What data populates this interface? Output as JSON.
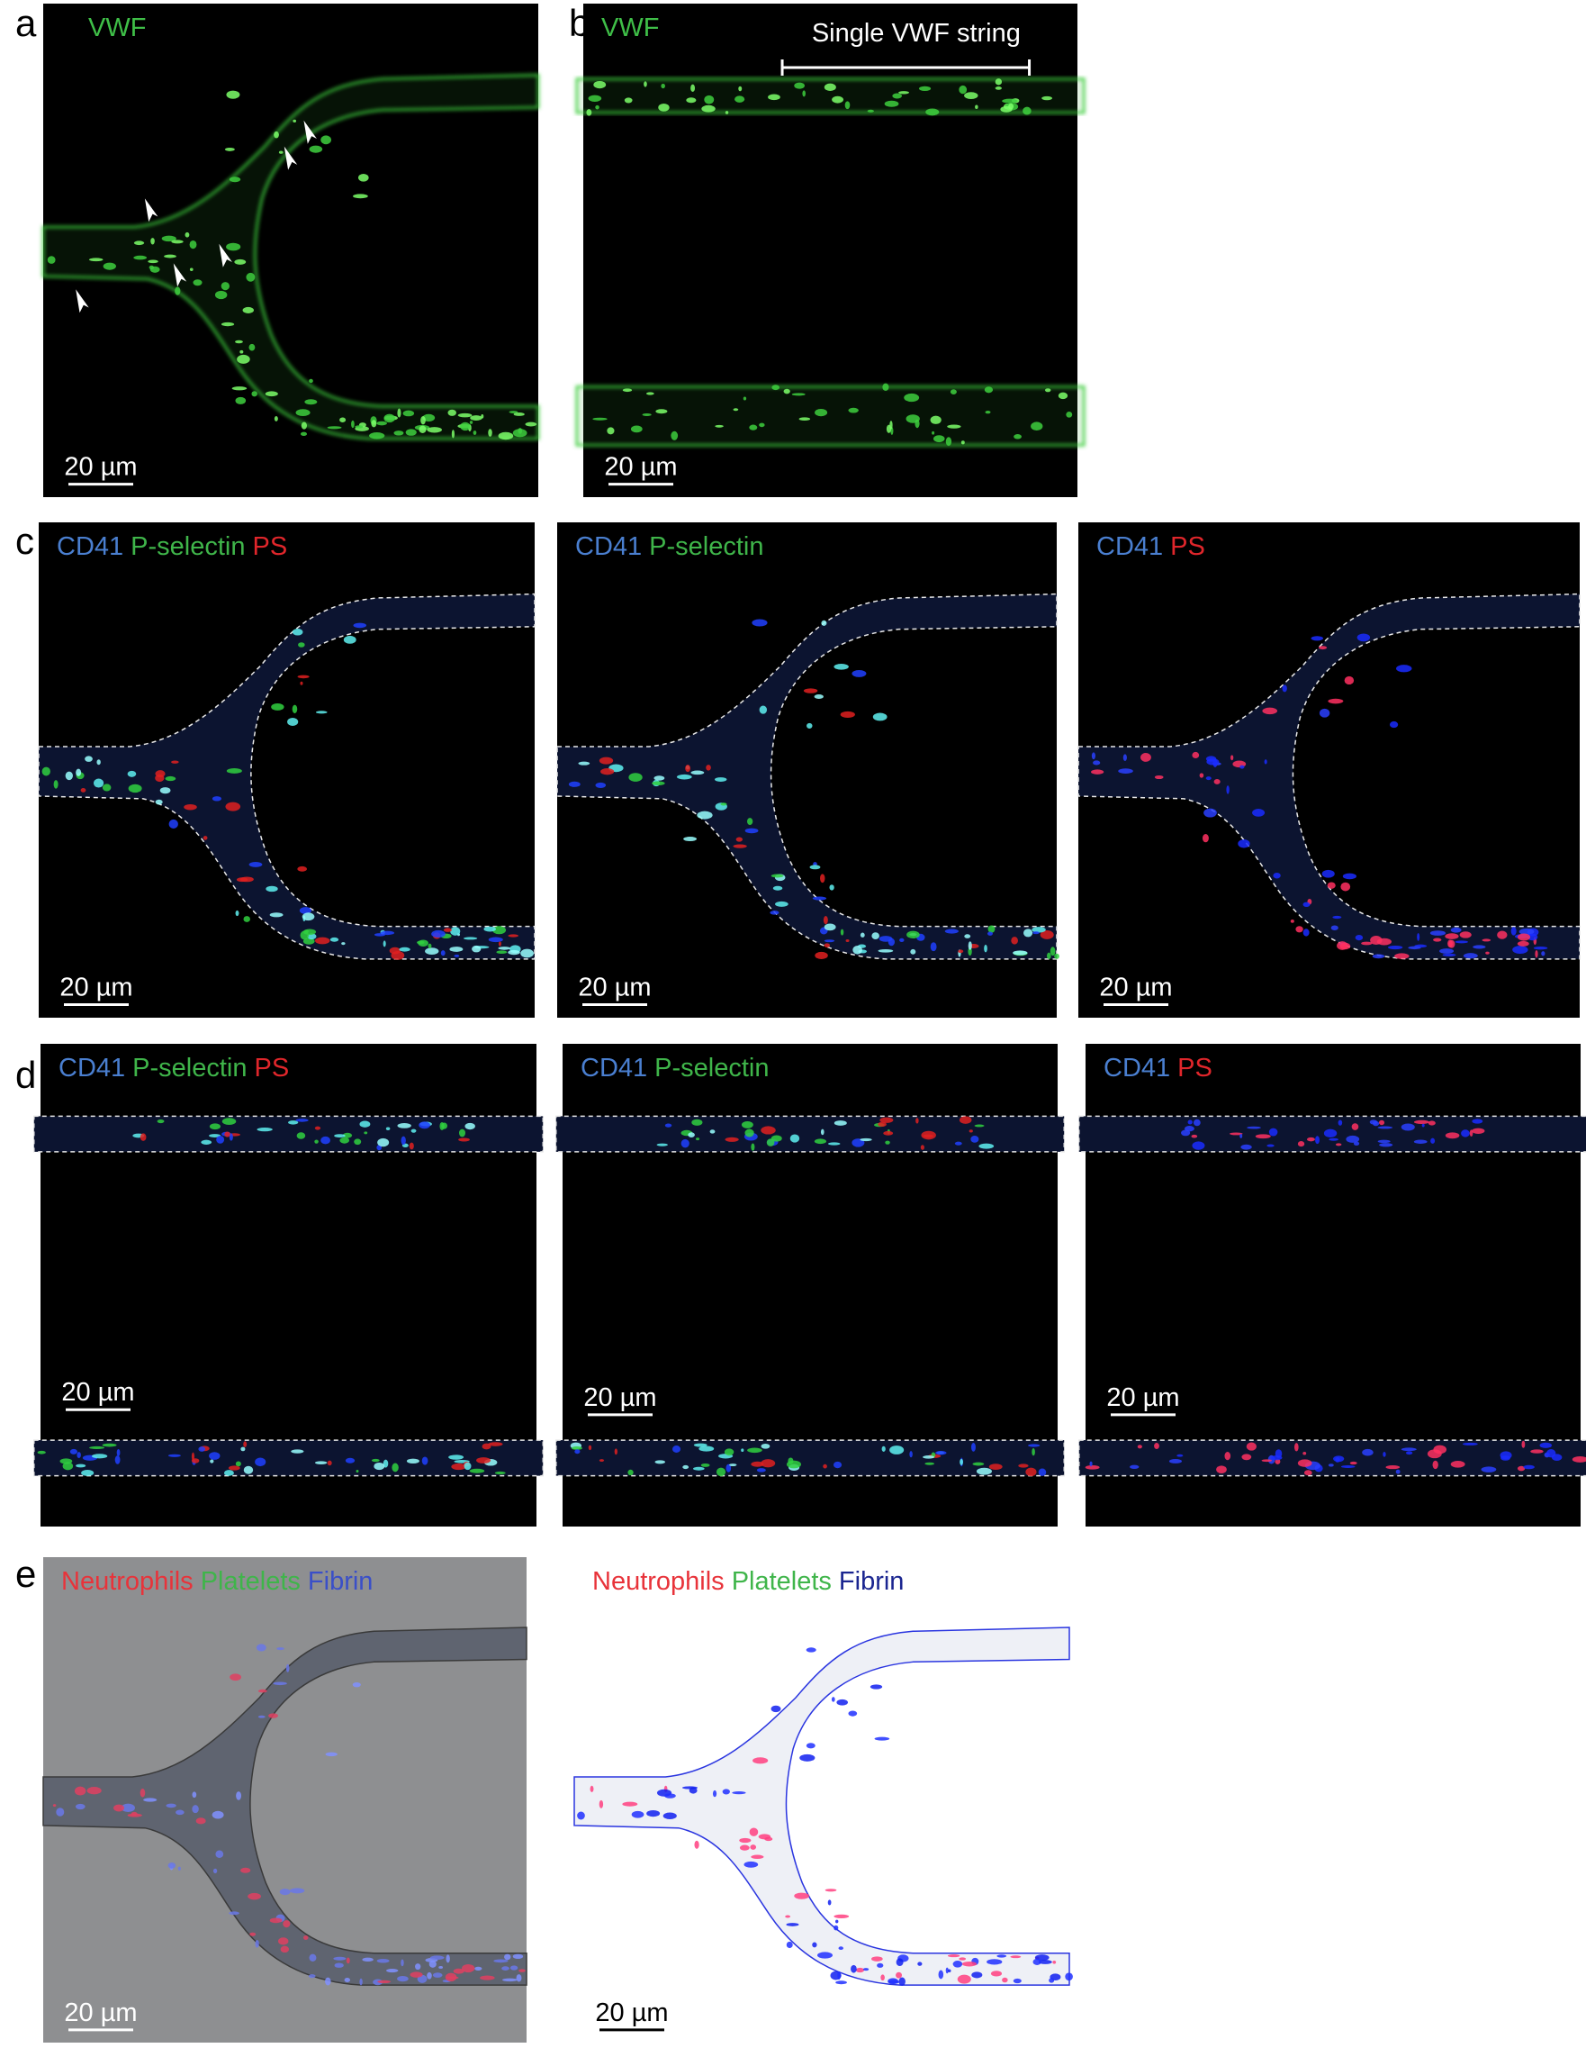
{
  "panels": [
    {
      "letter": "a",
      "images": [
        {
          "labels": [
            {
              "text": "VWF",
              "color": "#3fbf48"
            }
          ],
          "scale_bar": "20 µm"
        }
      ]
    },
    {
      "letter": "b",
      "images": [
        {
          "labels": [
            {
              "text": "VWF",
              "color": "#3fbf48"
            }
          ],
          "annotation": "Single VWF string",
          "scale_bar": "20 µm"
        }
      ]
    },
    {
      "letter": "c",
      "images": [
        {
          "labels": [
            {
              "text": "CD41",
              "color": "#4a7fd0"
            },
            {
              "text": "P-selectin",
              "color": "#3fb54a"
            },
            {
              "text": "PS",
              "color": "#e0262b"
            }
          ],
          "scale_bar": "20 µm"
        },
        {
          "labels": [
            {
              "text": "CD41",
              "color": "#4a7fd0"
            },
            {
              "text": "P-selectin",
              "color": "#3fb54a"
            }
          ],
          "scale_bar": "20 µm"
        },
        {
          "labels": [
            {
              "text": "CD41",
              "color": "#4a7fd0"
            },
            {
              "text": "PS",
              "color": "#e0262b"
            }
          ],
          "scale_bar": "20 µm"
        }
      ]
    },
    {
      "letter": "d",
      "images": [
        {
          "labels": [
            {
              "text": "CD41",
              "color": "#4a7fd0"
            },
            {
              "text": "P-selectin",
              "color": "#3fb54a"
            },
            {
              "text": "PS",
              "color": "#e0262b"
            }
          ],
          "scale_bar": "20 µm"
        },
        {
          "labels": [
            {
              "text": "CD41",
              "color": "#4a7fd0"
            },
            {
              "text": "P-selectin",
              "color": "#3fb54a"
            }
          ],
          "scale_bar": "20 µm"
        },
        {
          "labels": [
            {
              "text": "CD41",
              "color": "#4a7fd0"
            },
            {
              "text": "PS",
              "color": "#e0262b"
            }
          ],
          "scale_bar": "20 µm"
        }
      ]
    },
    {
      "letter": "e",
      "images": [
        {
          "labels": [
            {
              "text": "Neutrophils",
              "color": "#e8333a"
            },
            {
              "text": "Platelets",
              "color": "#3fb54a"
            },
            {
              "text": "Fibrin",
              "color": "#3a4fc8"
            }
          ],
          "scale_bar": "20 µm"
        },
        {
          "labels": [
            {
              "text": "Neutrophils",
              "color": "#e8333a"
            },
            {
              "text": "Platelets",
              "color": "#3fb54a"
            },
            {
              "text": "Fibrin",
              "color": "#1a2590"
            }
          ],
          "scale_bar": "20 µm"
        }
      ]
    }
  ]
}
